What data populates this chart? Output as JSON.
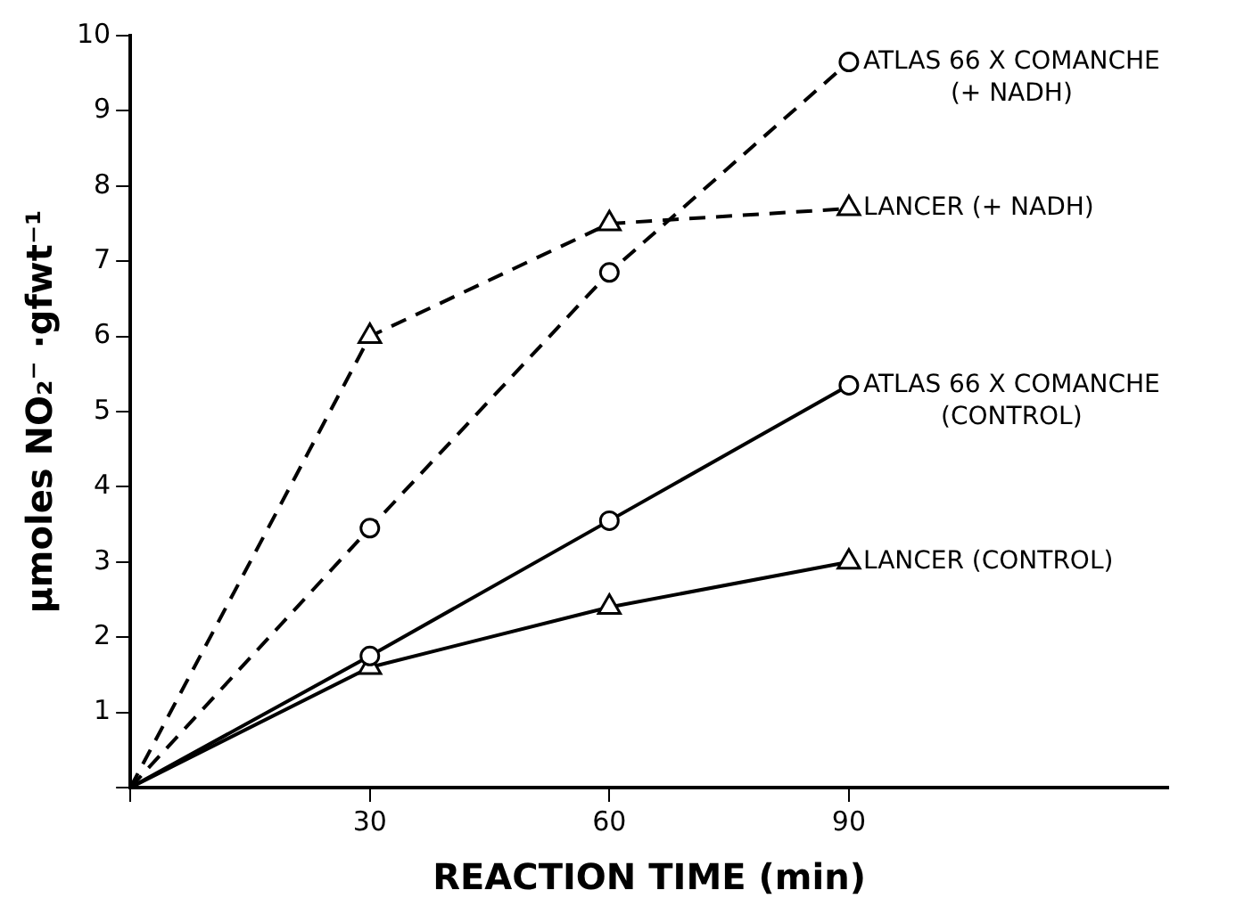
{
  "chart_data": {
    "type": "line",
    "xlabel": "REACTION TIME (min)",
    "ylabel": "μmoles NO₂⁻ ·gfwt⁻¹",
    "x": [
      0,
      30,
      60,
      90
    ],
    "series": [
      {
        "name": "ATLAS 66 X COMANCHE (+ NADH)",
        "color": "#000000",
        "values": [
          0,
          3.45,
          6.85,
          9.65
        ],
        "line_style": "dashed",
        "marker": "circle"
      },
      {
        "name": "LANCER (+ NADH)",
        "color": "#000000",
        "values": [
          0,
          6.0,
          7.5,
          7.7
        ],
        "line_style": "dashed",
        "marker": "triangle"
      },
      {
        "name": "ATLAS 66 X COMANCHE (CONTROL)",
        "color": "#000000",
        "values": [
          0,
          1.75,
          3.55,
          5.35
        ],
        "line_style": "solid",
        "marker": "circle"
      },
      {
        "name": "LANCER (CONTROL)",
        "color": "#000000",
        "values": [
          0,
          1.6,
          2.4,
          3.0
        ],
        "line_style": "solid",
        "marker": "triangle"
      }
    ],
    "xlim": [
      0,
      130
    ],
    "xticks": [
      {
        "value": 0,
        "label": null
      },
      30,
      60,
      90
    ],
    "ylim": [
      0,
      10
    ],
    "yticks": [
      {
        "value": 0,
        "label": null
      },
      1,
      2,
      3,
      4,
      5,
      6,
      7,
      8,
      9,
      10
    ],
    "grid": false,
    "legend": false
  }
}
